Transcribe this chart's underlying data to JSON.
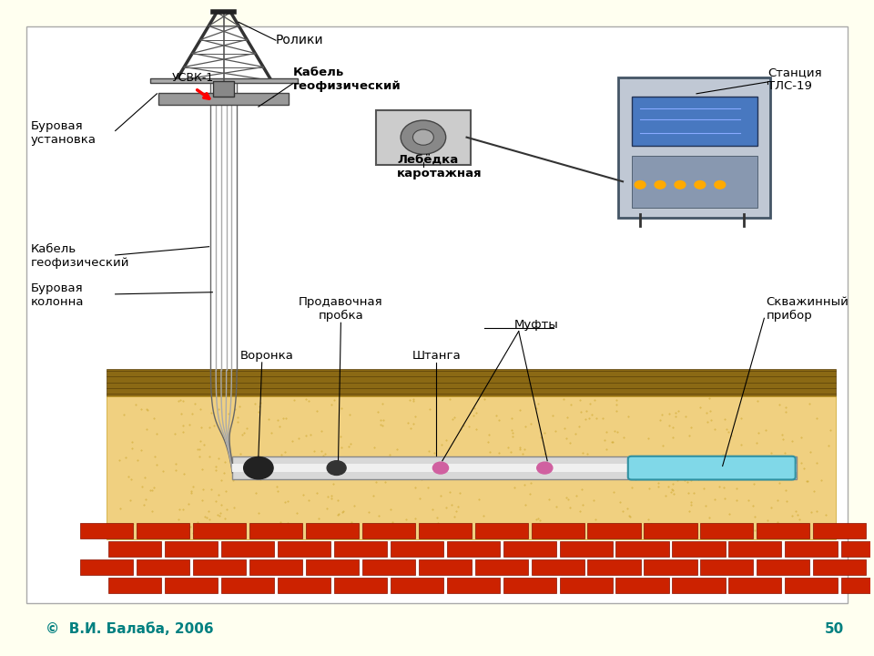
{
  "bg_color": "#fffff0",
  "diagram_bg": "#ffffff",
  "copyright": "©  В.И. Балаба, 2006",
  "page_number": "50",
  "teal_color": "#008080",
  "labels": {
    "usvk": "УСВК-1",
    "roliki": "Ролики",
    "burovaya": "Буровая\nустановка",
    "kabel_geo": "Кабель\nгеофизический",
    "lebedka": "Лебёдка\nкаротажная",
    "stantsiya": "Станция\nТЛС-19",
    "kabel_geo2": "Кабель\nгеофизический",
    "burovaya_kolonna": "Буровая\nколонна",
    "prodavochnaya": "Продавочная\nпробка",
    "voronka": "Воронка",
    "shtanga": "Штанга",
    "mufty": "Муфты",
    "skvazhinny": "Скважинный\nприбор"
  }
}
